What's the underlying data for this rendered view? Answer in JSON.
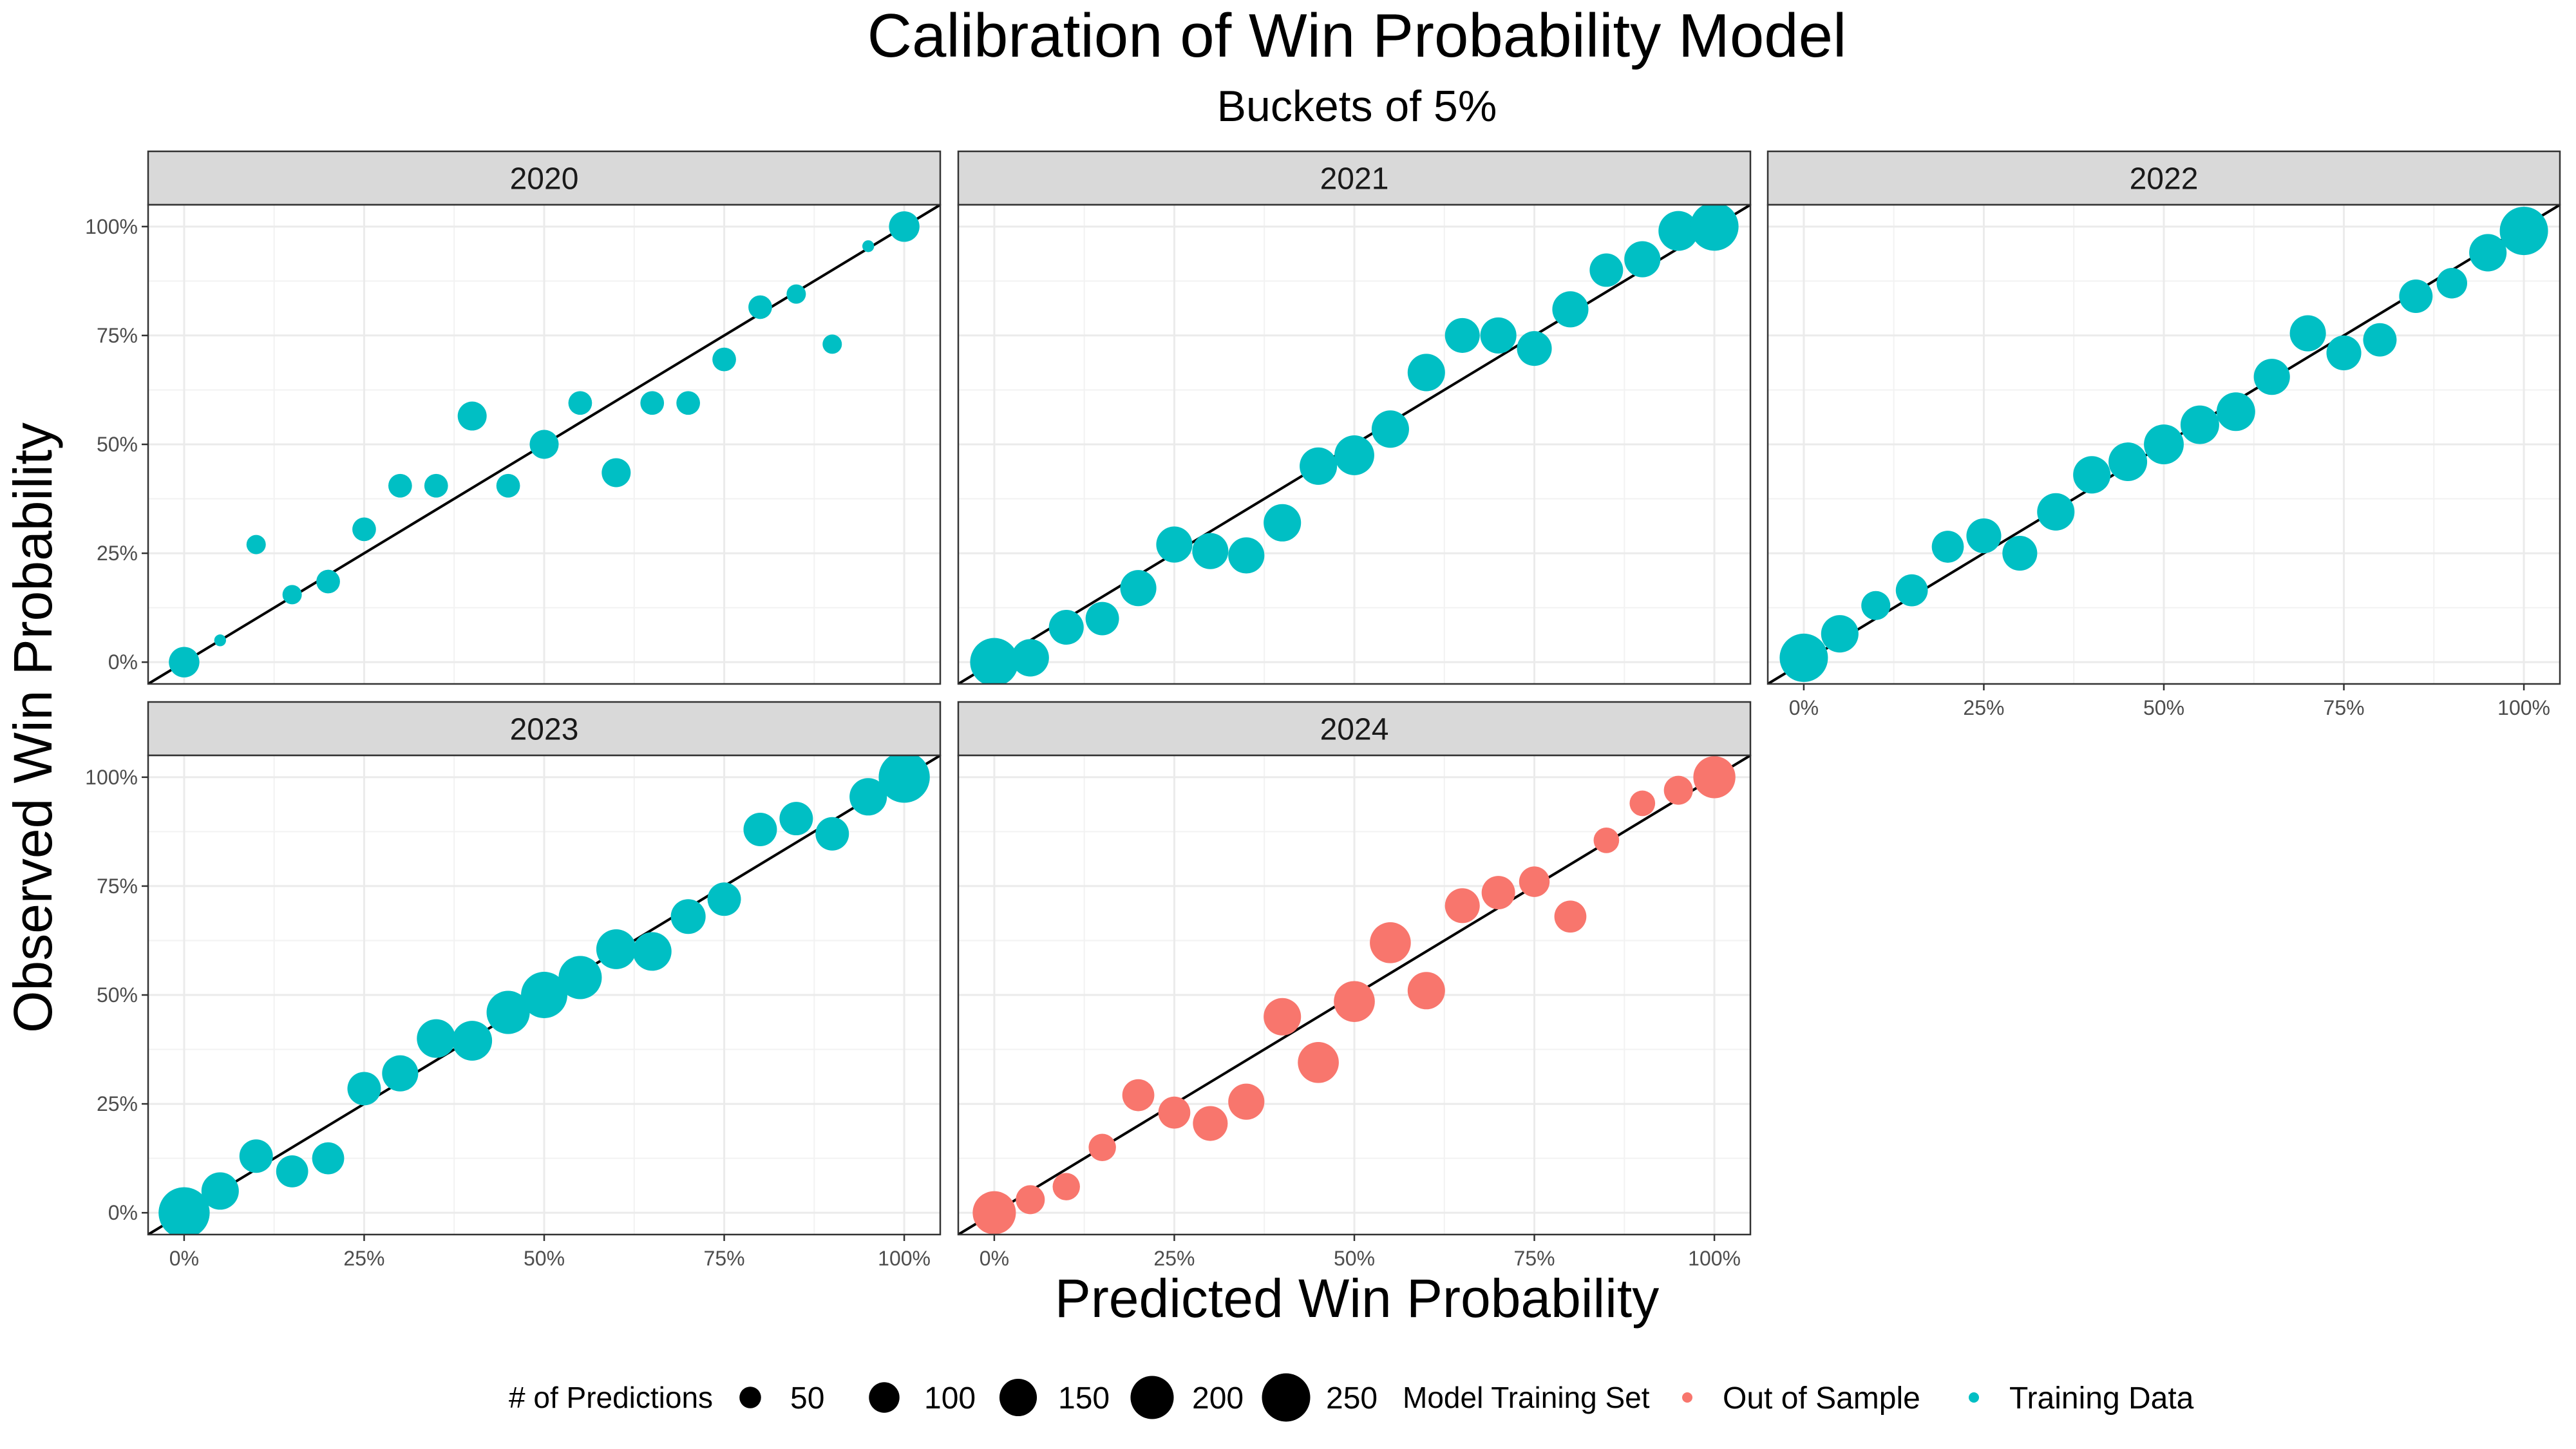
{
  "chart_data": {
    "type": "scatter",
    "title": "Calibration of Win Probability Model",
    "subtitle": "Buckets of 5%",
    "xlabel": "Predicted Win Probability",
    "ylabel": "Observed Win Probability",
    "xlim": [
      0,
      1
    ],
    "ylim": [
      0,
      1
    ],
    "x_ticks": [
      "0%",
      "25%",
      "50%",
      "75%",
      "100%"
    ],
    "y_ticks": [
      "0%",
      "25%",
      "50%",
      "75%",
      "100%"
    ],
    "reference_line": "y = x",
    "grid": true,
    "facets": [
      {
        "label": "2020",
        "set": "Training Data",
        "points": [
          {
            "x": 0.0,
            "y": 0.0,
            "n": 100
          },
          {
            "x": 0.05,
            "y": 0.05,
            "n": 15
          },
          {
            "x": 0.1,
            "y": 0.27,
            "n": 40
          },
          {
            "x": 0.15,
            "y": 0.155,
            "n": 40
          },
          {
            "x": 0.2,
            "y": 0.185,
            "n": 60
          },
          {
            "x": 0.25,
            "y": 0.305,
            "n": 60
          },
          {
            "x": 0.3,
            "y": 0.405,
            "n": 60
          },
          {
            "x": 0.35,
            "y": 0.405,
            "n": 60
          },
          {
            "x": 0.4,
            "y": 0.565,
            "n": 90
          },
          {
            "x": 0.45,
            "y": 0.405,
            "n": 60
          },
          {
            "x": 0.5,
            "y": 0.5,
            "n": 90
          },
          {
            "x": 0.55,
            "y": 0.595,
            "n": 60
          },
          {
            "x": 0.6,
            "y": 0.435,
            "n": 90
          },
          {
            "x": 0.65,
            "y": 0.595,
            "n": 60
          },
          {
            "x": 0.7,
            "y": 0.595,
            "n": 60
          },
          {
            "x": 0.75,
            "y": 0.695,
            "n": 60
          },
          {
            "x": 0.8,
            "y": 0.815,
            "n": 60
          },
          {
            "x": 0.85,
            "y": 0.845,
            "n": 40
          },
          {
            "x": 0.9,
            "y": 0.73,
            "n": 40
          },
          {
            "x": 0.95,
            "y": 0.955,
            "n": 15
          },
          {
            "x": 1.0,
            "y": 1.0,
            "n": 100
          }
        ]
      },
      {
        "label": "2021",
        "set": "Training Data",
        "points": [
          {
            "x": 0.0,
            "y": 0.0,
            "n": 250
          },
          {
            "x": 0.05,
            "y": 0.01,
            "n": 150
          },
          {
            "x": 0.1,
            "y": 0.08,
            "n": 130
          },
          {
            "x": 0.15,
            "y": 0.1,
            "n": 120
          },
          {
            "x": 0.2,
            "y": 0.17,
            "n": 140
          },
          {
            "x": 0.25,
            "y": 0.27,
            "n": 140
          },
          {
            "x": 0.3,
            "y": 0.255,
            "n": 140
          },
          {
            "x": 0.35,
            "y": 0.245,
            "n": 140
          },
          {
            "x": 0.4,
            "y": 0.32,
            "n": 150
          },
          {
            "x": 0.45,
            "y": 0.45,
            "n": 150
          },
          {
            "x": 0.5,
            "y": 0.475,
            "n": 170
          },
          {
            "x": 0.55,
            "y": 0.535,
            "n": 150
          },
          {
            "x": 0.6,
            "y": 0.665,
            "n": 150
          },
          {
            "x": 0.65,
            "y": 0.75,
            "n": 130
          },
          {
            "x": 0.7,
            "y": 0.75,
            "n": 140
          },
          {
            "x": 0.75,
            "y": 0.72,
            "n": 130
          },
          {
            "x": 0.8,
            "y": 0.81,
            "n": 140
          },
          {
            "x": 0.85,
            "y": 0.9,
            "n": 120
          },
          {
            "x": 0.9,
            "y": 0.925,
            "n": 140
          },
          {
            "x": 0.95,
            "y": 0.99,
            "n": 170
          },
          {
            "x": 1.0,
            "y": 1.0,
            "n": 250
          }
        ]
      },
      {
        "label": "2022",
        "set": "Training Data",
        "points": [
          {
            "x": 0.0,
            "y": 0.01,
            "n": 250
          },
          {
            "x": 0.05,
            "y": 0.065,
            "n": 150
          },
          {
            "x": 0.1,
            "y": 0.13,
            "n": 90
          },
          {
            "x": 0.15,
            "y": 0.165,
            "n": 110
          },
          {
            "x": 0.2,
            "y": 0.265,
            "n": 110
          },
          {
            "x": 0.25,
            "y": 0.29,
            "n": 130
          },
          {
            "x": 0.3,
            "y": 0.25,
            "n": 130
          },
          {
            "x": 0.35,
            "y": 0.345,
            "n": 150
          },
          {
            "x": 0.4,
            "y": 0.43,
            "n": 150
          },
          {
            "x": 0.45,
            "y": 0.46,
            "n": 160
          },
          {
            "x": 0.5,
            "y": 0.5,
            "n": 170
          },
          {
            "x": 0.55,
            "y": 0.545,
            "n": 160
          },
          {
            "x": 0.6,
            "y": 0.575,
            "n": 160
          },
          {
            "x": 0.65,
            "y": 0.655,
            "n": 140
          },
          {
            "x": 0.7,
            "y": 0.755,
            "n": 140
          },
          {
            "x": 0.75,
            "y": 0.71,
            "n": 130
          },
          {
            "x": 0.8,
            "y": 0.74,
            "n": 120
          },
          {
            "x": 0.85,
            "y": 0.84,
            "n": 120
          },
          {
            "x": 0.9,
            "y": 0.87,
            "n": 100
          },
          {
            "x": 0.95,
            "y": 0.94,
            "n": 150
          },
          {
            "x": 1.0,
            "y": 0.99,
            "n": 250
          }
        ]
      },
      {
        "label": "2023",
        "set": "Training Data",
        "points": [
          {
            "x": 0.0,
            "y": 0.0,
            "n": 280
          },
          {
            "x": 0.05,
            "y": 0.05,
            "n": 150
          },
          {
            "x": 0.1,
            "y": 0.13,
            "n": 120
          },
          {
            "x": 0.15,
            "y": 0.095,
            "n": 110
          },
          {
            "x": 0.2,
            "y": 0.125,
            "n": 110
          },
          {
            "x": 0.25,
            "y": 0.285,
            "n": 120
          },
          {
            "x": 0.3,
            "y": 0.32,
            "n": 140
          },
          {
            "x": 0.35,
            "y": 0.4,
            "n": 160
          },
          {
            "x": 0.4,
            "y": 0.395,
            "n": 170
          },
          {
            "x": 0.45,
            "y": 0.46,
            "n": 200
          },
          {
            "x": 0.5,
            "y": 0.5,
            "n": 230
          },
          {
            "x": 0.55,
            "y": 0.54,
            "n": 200
          },
          {
            "x": 0.6,
            "y": 0.605,
            "n": 170
          },
          {
            "x": 0.65,
            "y": 0.6,
            "n": 160
          },
          {
            "x": 0.7,
            "y": 0.68,
            "n": 130
          },
          {
            "x": 0.75,
            "y": 0.72,
            "n": 120
          },
          {
            "x": 0.8,
            "y": 0.88,
            "n": 120
          },
          {
            "x": 0.85,
            "y": 0.905,
            "n": 120
          },
          {
            "x": 0.9,
            "y": 0.87,
            "n": 120
          },
          {
            "x": 0.95,
            "y": 0.955,
            "n": 150
          },
          {
            "x": 1.0,
            "y": 1.0,
            "n": 280
          }
        ]
      },
      {
        "label": "2024",
        "set": "Out of Sample",
        "points": [
          {
            "x": 0.0,
            "y": 0.0,
            "n": 200
          },
          {
            "x": 0.05,
            "y": 0.03,
            "n": 90
          },
          {
            "x": 0.1,
            "y": 0.06,
            "n": 80
          },
          {
            "x": 0.15,
            "y": 0.15,
            "n": 80
          },
          {
            "x": 0.2,
            "y": 0.27,
            "n": 110
          },
          {
            "x": 0.25,
            "y": 0.23,
            "n": 110
          },
          {
            "x": 0.3,
            "y": 0.205,
            "n": 130
          },
          {
            "x": 0.35,
            "y": 0.255,
            "n": 140
          },
          {
            "x": 0.4,
            "y": 0.45,
            "n": 150
          },
          {
            "x": 0.45,
            "y": 0.345,
            "n": 180
          },
          {
            "x": 0.5,
            "y": 0.485,
            "n": 180
          },
          {
            "x": 0.55,
            "y": 0.62,
            "n": 180
          },
          {
            "x": 0.6,
            "y": 0.51,
            "n": 150
          },
          {
            "x": 0.65,
            "y": 0.705,
            "n": 130
          },
          {
            "x": 0.7,
            "y": 0.735,
            "n": 120
          },
          {
            "x": 0.75,
            "y": 0.76,
            "n": 100
          },
          {
            "x": 0.8,
            "y": 0.68,
            "n": 110
          },
          {
            "x": 0.85,
            "y": 0.855,
            "n": 70
          },
          {
            "x": 0.9,
            "y": 0.94,
            "n": 70
          },
          {
            "x": 0.95,
            "y": 0.97,
            "n": 90
          },
          {
            "x": 1.0,
            "y": 1.0,
            "n": 190
          }
        ]
      }
    ],
    "legend": {
      "placement": "bottom",
      "size_title": "# of Predictions",
      "size_breaks": [
        50,
        100,
        150,
        200,
        250
      ],
      "color_title": "Model Training Set",
      "color_entries": [
        {
          "label": "Out of Sample",
          "color": "#F8766D"
        },
        {
          "label": "Training Data",
          "color": "#00BFC4"
        }
      ]
    }
  }
}
